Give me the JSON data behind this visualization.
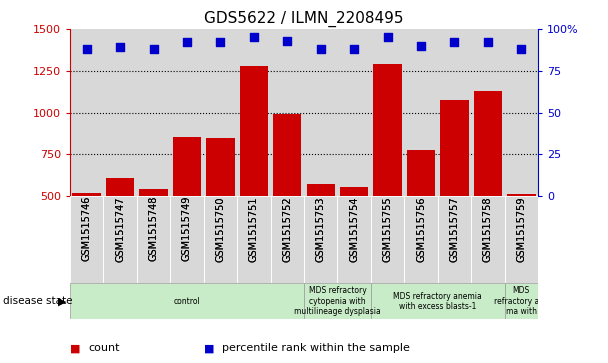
{
  "title": "GDS5622 / ILMN_2208495",
  "samples": [
    "GSM1515746",
    "GSM1515747",
    "GSM1515748",
    "GSM1515749",
    "GSM1515750",
    "GSM1515751",
    "GSM1515752",
    "GSM1515753",
    "GSM1515754",
    "GSM1515755",
    "GSM1515756",
    "GSM1515757",
    "GSM1515758",
    "GSM1515759"
  ],
  "counts": [
    520,
    610,
    545,
    855,
    845,
    1280,
    990,
    570,
    555,
    1290,
    775,
    1075,
    1130,
    510
  ],
  "percentiles": [
    88,
    89,
    88,
    92,
    92,
    95,
    93,
    88,
    88,
    95,
    90,
    92,
    92,
    88
  ],
  "ylim_left": [
    500,
    1500
  ],
  "ylim_right": [
    0,
    100
  ],
  "yticks_left": [
    500,
    750,
    1000,
    1250,
    1500
  ],
  "yticks_right": [
    0,
    25,
    50,
    75,
    100
  ],
  "bar_color": "#cc0000",
  "dot_color": "#0000cc",
  "col_bg_color": "#d8d8d8",
  "group_bounds": [
    {
      "start": 0,
      "end": 6,
      "label": "control",
      "color": "#c8ecc8"
    },
    {
      "start": 7,
      "end": 8,
      "label": "MDS refractory\ncytopenia with\nmultilineage dysplasia",
      "color": "#c8ecc8"
    },
    {
      "start": 9,
      "end": 12,
      "label": "MDS refractory anemia\nwith excess blasts-1",
      "color": "#c8ecc8"
    },
    {
      "start": 13,
      "end": 13,
      "label": "MDS\nrefractory ane\nma with",
      "color": "#c8ecc8"
    }
  ],
  "disease_state_label": "disease state",
  "legend_count_label": "count",
  "legend_percentile_label": "percentile rank within the sample"
}
